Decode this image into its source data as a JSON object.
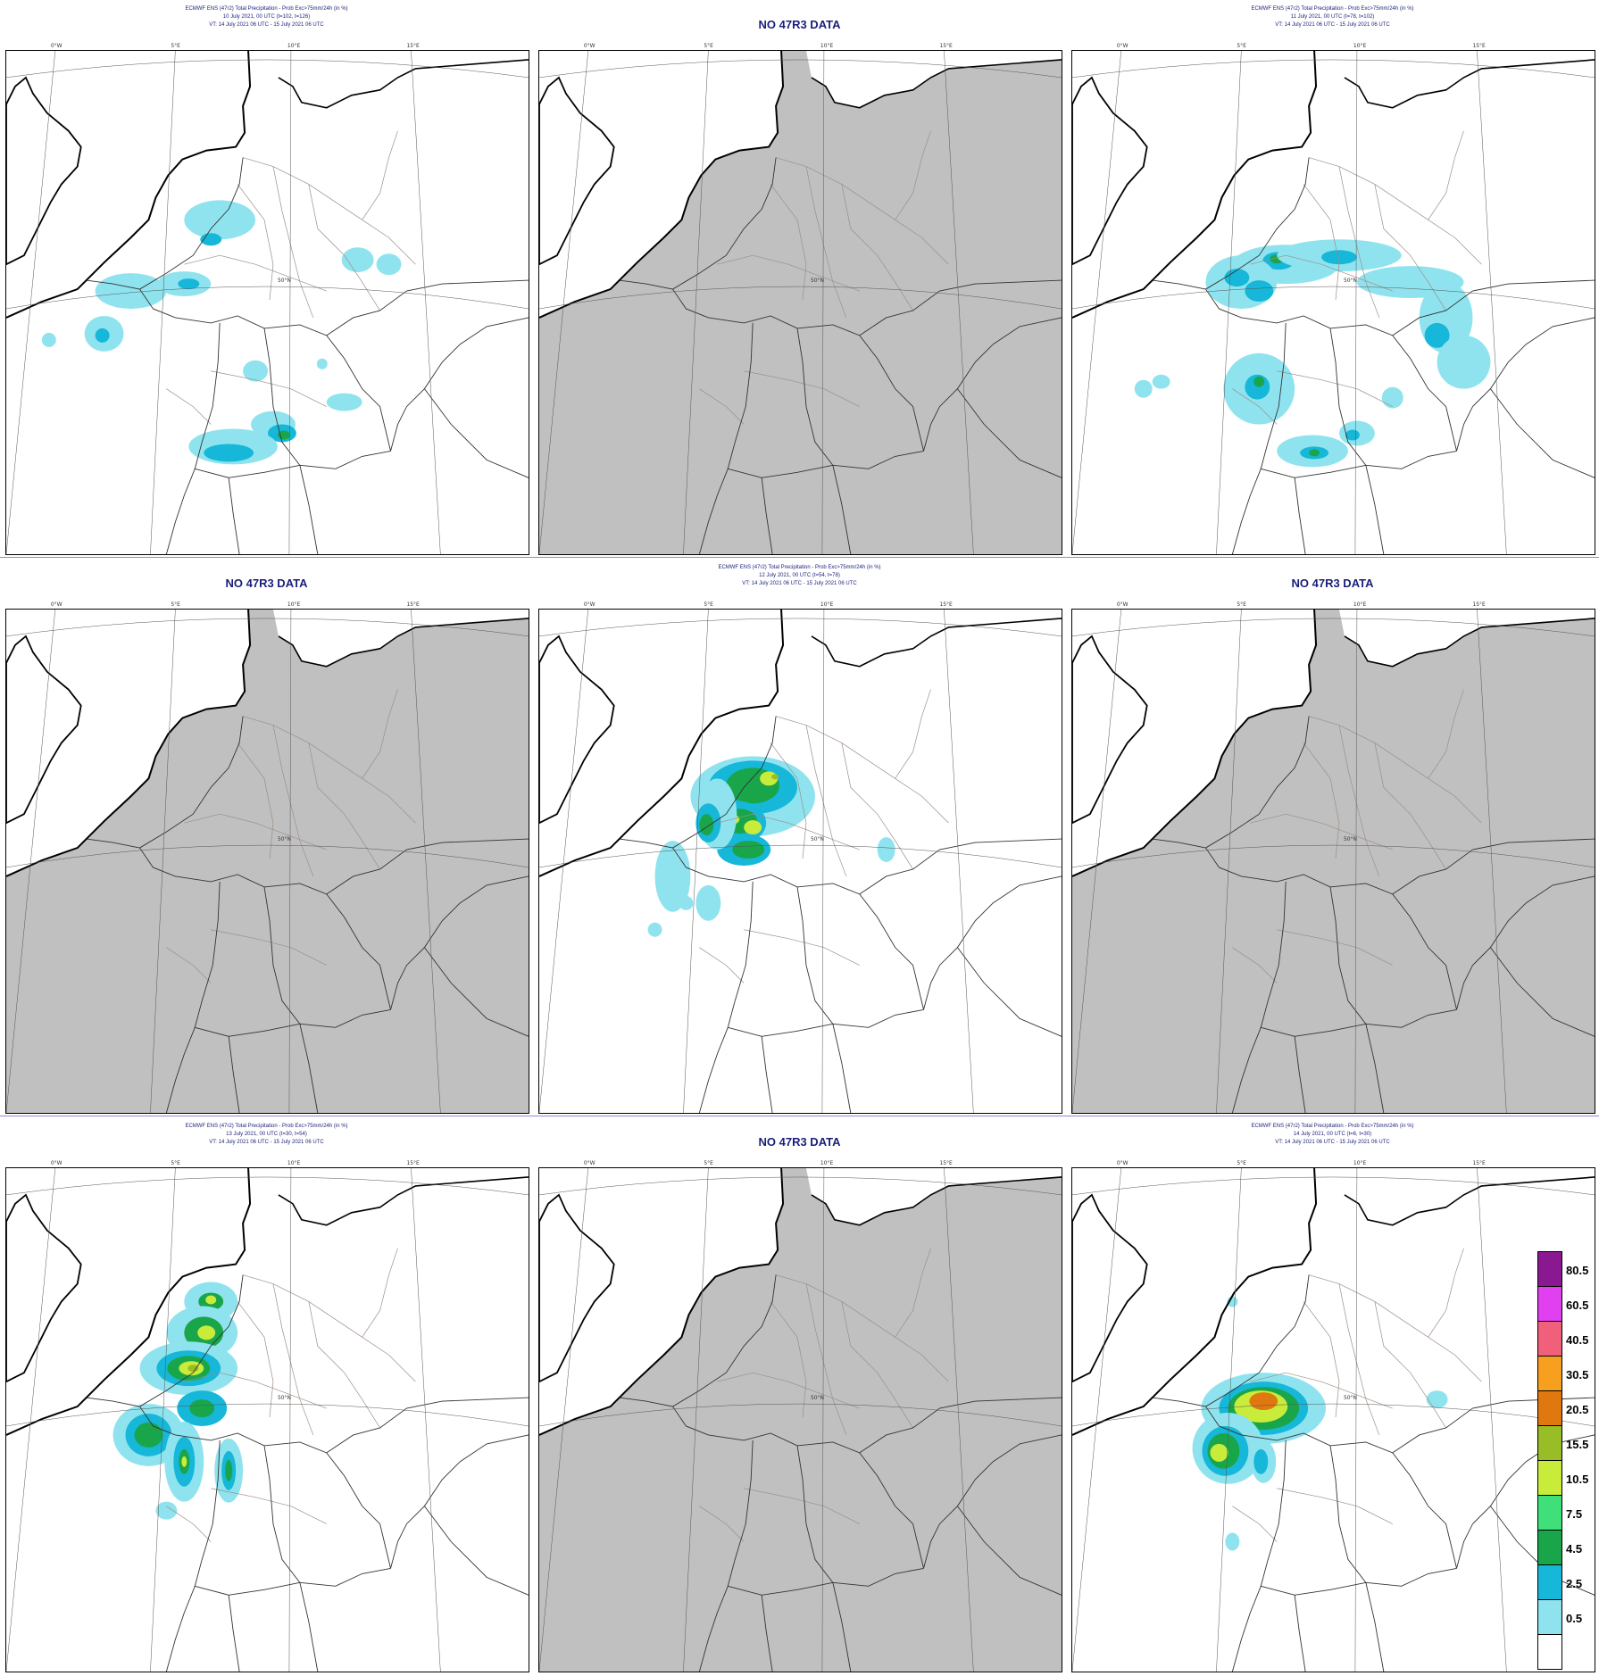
{
  "colors": {
    "grey_land": "#c0c0c0",
    "title_blue": "#1a1f7a",
    "lightcyan": "#8fe3ef",
    "cyan": "#16b7d8",
    "green": "#19a64a",
    "brightgreen": "#3fe07a",
    "lime": "#c9ec3a",
    "olive": "#98bd26",
    "darkorange": "#e07810",
    "orange": "#f7a020",
    "salmon": "#f0607a",
    "magenta": "#e040f0",
    "purple": "#8a1890"
  },
  "panels": [
    {
      "id": "p1",
      "nodata": false,
      "title": [
        "ECMWF ENS (47r2) Total Precipitation - Prob Exc>75mm/24h (in %)",
        "10 July 2021, 00 UTC (t=102, t=126)",
        "VT: 14 July 2021 06 UTC - 15 July 2021 06 UTC"
      ]
    },
    {
      "id": "p2",
      "nodata": true,
      "title": [
        "NO 47R3 DATA"
      ]
    },
    {
      "id": "p3",
      "nodata": false,
      "title": [
        "ECMWF ENS (47r2) Total Precipitation - Prob Exc>75mm/24h (in %)",
        "11 July 2021, 00 UTC (t=78, t=102)",
        "VT: 14 July 2021 06 UTC - 15 July 2021 06 UTC"
      ]
    },
    {
      "id": "p4",
      "nodata": true,
      "title": [
        "NO 47R3 DATA"
      ]
    },
    {
      "id": "p5",
      "nodata": false,
      "title": [
        "ECMWF ENS (47r2) Total Precipitation - Prob Exc>75mm/24h (in %)",
        "12 July 2021, 00 UTC (t=54, t=78)",
        "VT: 14 July 2021 06 UTC - 15 July 2021 06 UTC"
      ]
    },
    {
      "id": "p6",
      "nodata": true,
      "title": [
        "NO 47R3 DATA"
      ]
    },
    {
      "id": "p7",
      "nodata": false,
      "title": [
        "ECMWF ENS (47r2) Total Precipitation - Prob Exc>75mm/24h (in %)",
        "13 July 2021, 00 UTC (t=30, t=54)",
        "VT: 14 July 2021 06 UTC - 15 July 2021 06 UTC"
      ]
    },
    {
      "id": "p8",
      "nodata": true,
      "title": [
        "NO 47R3 DATA"
      ]
    },
    {
      "id": "p9",
      "nodata": false,
      "title": [
        "ECMWF ENS (47r2) Total Precipitation - Prob Exc>75mm/24h (in %)",
        "14 July 2021, 00 UTC (t=6, t=30)",
        "VT: 14 July 2021 06 UTC - 15 July 2021 06 UTC"
      ]
    }
  ],
  "axis": {
    "lon_labels": [
      "0°W",
      "5°E",
      "10°E",
      "15°E"
    ],
    "lat_label": "50°N"
  },
  "legend": {
    "levels": [
      {
        "label": "80.5",
        "color": "#8a1890"
      },
      {
        "label": "60.5",
        "color": "#e040f0"
      },
      {
        "label": "40.5",
        "color": "#f0607a"
      },
      {
        "label": "30.5",
        "color": "#f7a020"
      },
      {
        "label": "20.5",
        "color": "#e07810"
      },
      {
        "label": "15.5",
        "color": "#98bd26"
      },
      {
        "label": "10.5",
        "color": "#c9ec3a"
      },
      {
        "label": "7.5",
        "color": "#3fe07a"
      },
      {
        "label": "4.5",
        "color": "#19a64a"
      },
      {
        "label": "2.5",
        "color": "#16b7d8"
      },
      {
        "label": "0.5",
        "color": "#8fe3ef"
      },
      {
        "label": "",
        "color": "#ffffff"
      }
    ]
  }
}
